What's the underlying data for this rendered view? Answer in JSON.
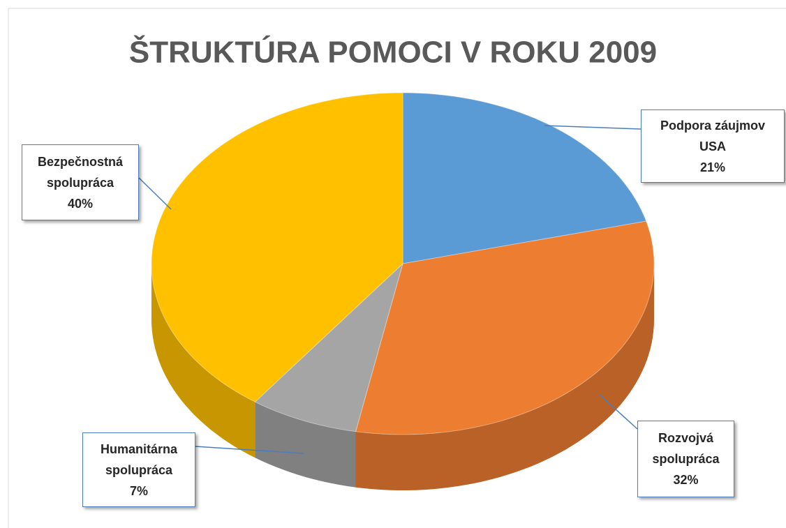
{
  "chart_data": {
    "type": "pie",
    "title": "ŠTRUKTÚRA POMOCI V ROKU 2009",
    "categories": [
      "Podpora záujmov USA",
      "Rozvojvá spolupráca",
      "Humanitárna spolupráca",
      "Bezpečnostná spolupráca"
    ],
    "values": [
      21,
      32,
      7,
      40
    ],
    "value_labels": [
      "21%",
      "32%",
      "7%",
      "40%"
    ],
    "colors": [
      "#5b9bd5",
      "#ed7d31",
      "#a5a5a5",
      "#ffc000"
    ]
  }
}
